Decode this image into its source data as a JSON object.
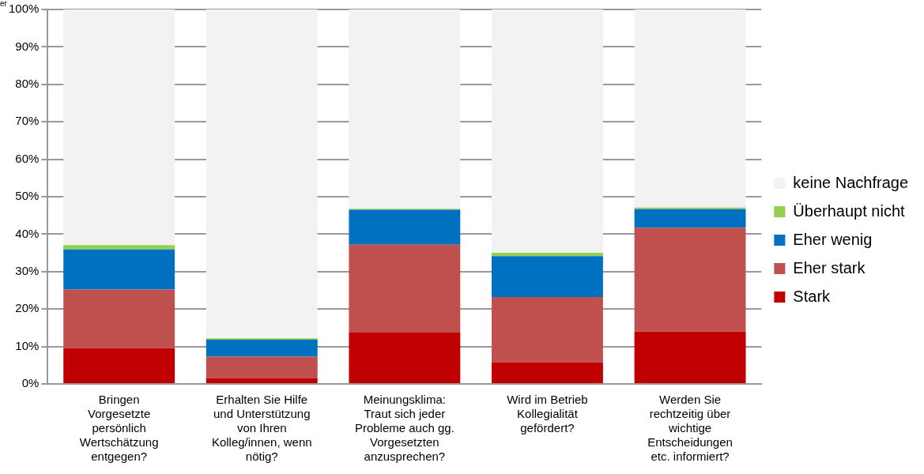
{
  "chart_data": {
    "type": "bar",
    "stacked": true,
    "categories": [
      "Bringen Vorgesetzte persönlich Wertschätzung entgegen?",
      "Erhalten Sie Hilfe und Unterstützung von Ihren Kolleg/innen, wenn nötig?",
      "Meinungsklima: Traut sich jeder Probleme auch gg. Vorgesetzten anzusprechen?",
      "Wird im Betrieb Kollegialität gefördert?",
      "Werden Sie rechtzeitig über wichtige Entscheidungen etc. informiert?"
    ],
    "series": [
      {
        "name": "Stark",
        "color": "#c00000",
        "values": [
          9.6,
          1.6,
          13.7,
          5.8,
          14.0
        ]
      },
      {
        "name": "Eher stark",
        "color": "#c0504d",
        "values": [
          15.6,
          5.7,
          23.5,
          17.4,
          27.7
        ]
      },
      {
        "name": "Eher wenig",
        "color": "#0070c0",
        "values": [
          10.7,
          4.5,
          9.3,
          10.9,
          5.0
        ]
      },
      {
        "name": "Überhaupt nicht",
        "color": "#92d050",
        "values": [
          1.2,
          0.4,
          0.3,
          0.9,
          0.4
        ]
      },
      {
        "name": "keine Nachfrage",
        "color": "#f2f2f2",
        "values": [
          62.9,
          87.8,
          53.2,
          65.0,
          52.9
        ]
      }
    ],
    "ylim": [
      0,
      100
    ],
    "yticks": [
      {
        "value": 0,
        "label": "0%"
      },
      {
        "value": 10,
        "label": "10%"
      },
      {
        "value": 20,
        "label": "20%"
      },
      {
        "value": 30,
        "label": "30%"
      },
      {
        "value": 40,
        "label": "40%"
      },
      {
        "value": 50,
        "label": "50%"
      },
      {
        "value": 60,
        "label": "60%"
      },
      {
        "value": 70,
        "label": "70%"
      },
      {
        "value": 80,
        "label": "80%"
      },
      {
        "value": 90,
        "label": "90%"
      },
      {
        "value": 100,
        "label": "100%"
      }
    ],
    "grid": "y",
    "legend": "right",
    "annotations": [
      "er"
    ]
  }
}
